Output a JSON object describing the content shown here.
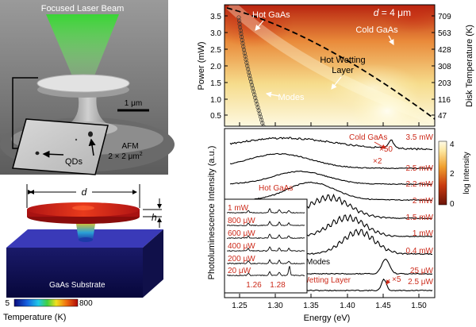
{
  "sem_panel": {
    "beam_label": "Focused Laser Beam",
    "scale_bar": "1 μm",
    "afm_label_1": "AFM",
    "afm_label_2": "2 × 2 μm",
    "afm_label_sup": "2",
    "qd_label": "QDs"
  },
  "model_panel": {
    "d_label": "d",
    "h_label": "h",
    "substrate_label": "GaAs Substrate",
    "colorbar_min": "5",
    "colorbar_max": "800",
    "colorbar_title": "Temperature (K)"
  },
  "map_panel": {
    "y_label": "Power (mW)",
    "right_label": "Disk Temperature (K)",
    "d_annotation": "d",
    "d_annotation_rest": " = 4 μm",
    "hot_gaas": "Hot GaAs",
    "cold_gaas": "Cold GaAs",
    "hot_wetting_1": "Hot Wetting",
    "hot_wetting_2": "Layer",
    "modes": "Modes",
    "y_ticks": [
      "0.5",
      "1.0",
      "1.5",
      "2.0",
      "2.5",
      "3.0",
      "3.5"
    ],
    "right_ticks": [
      "47",
      "116",
      "203",
      "308",
      "428",
      "563",
      "709"
    ]
  },
  "spectra_panel": {
    "y_label": "Photoluminescence Intensity (a.u.)",
    "x_label": "Energy (eV)",
    "x_ticks": [
      "1.25",
      "1.30",
      "1.35",
      "1.40",
      "1.45",
      "1.50"
    ],
    "power_labels": [
      "3.5 mW",
      "2.5 mW",
      "2.2 mW",
      "2 mW",
      "1.5 mW",
      "1 mW",
      "0.4 mW",
      "25 μW",
      "2.5 μW"
    ],
    "cold_gaas": "Cold GaAs",
    "x50": "×50",
    "x2": "×2",
    "hot_gaas": "Hot  GaAs",
    "modes": "Modes",
    "wetting_layer": "Wetting Layer",
    "x5": "×5",
    "inset_labels": [
      "1 mW",
      "800 μW",
      "600 μW",
      "400 μW",
      "200 μW",
      "20 μW"
    ],
    "inset_ticks": [
      "1.26",
      "1.28"
    ],
    "colorbar_ticks": [
      "4",
      "2",
      "0"
    ],
    "colorbar_title": "log Intensity"
  },
  "colors": {
    "accent_red": "#cc2a1a",
    "heat_low": "#fff1a6",
    "heat_high": "#d23a16"
  }
}
